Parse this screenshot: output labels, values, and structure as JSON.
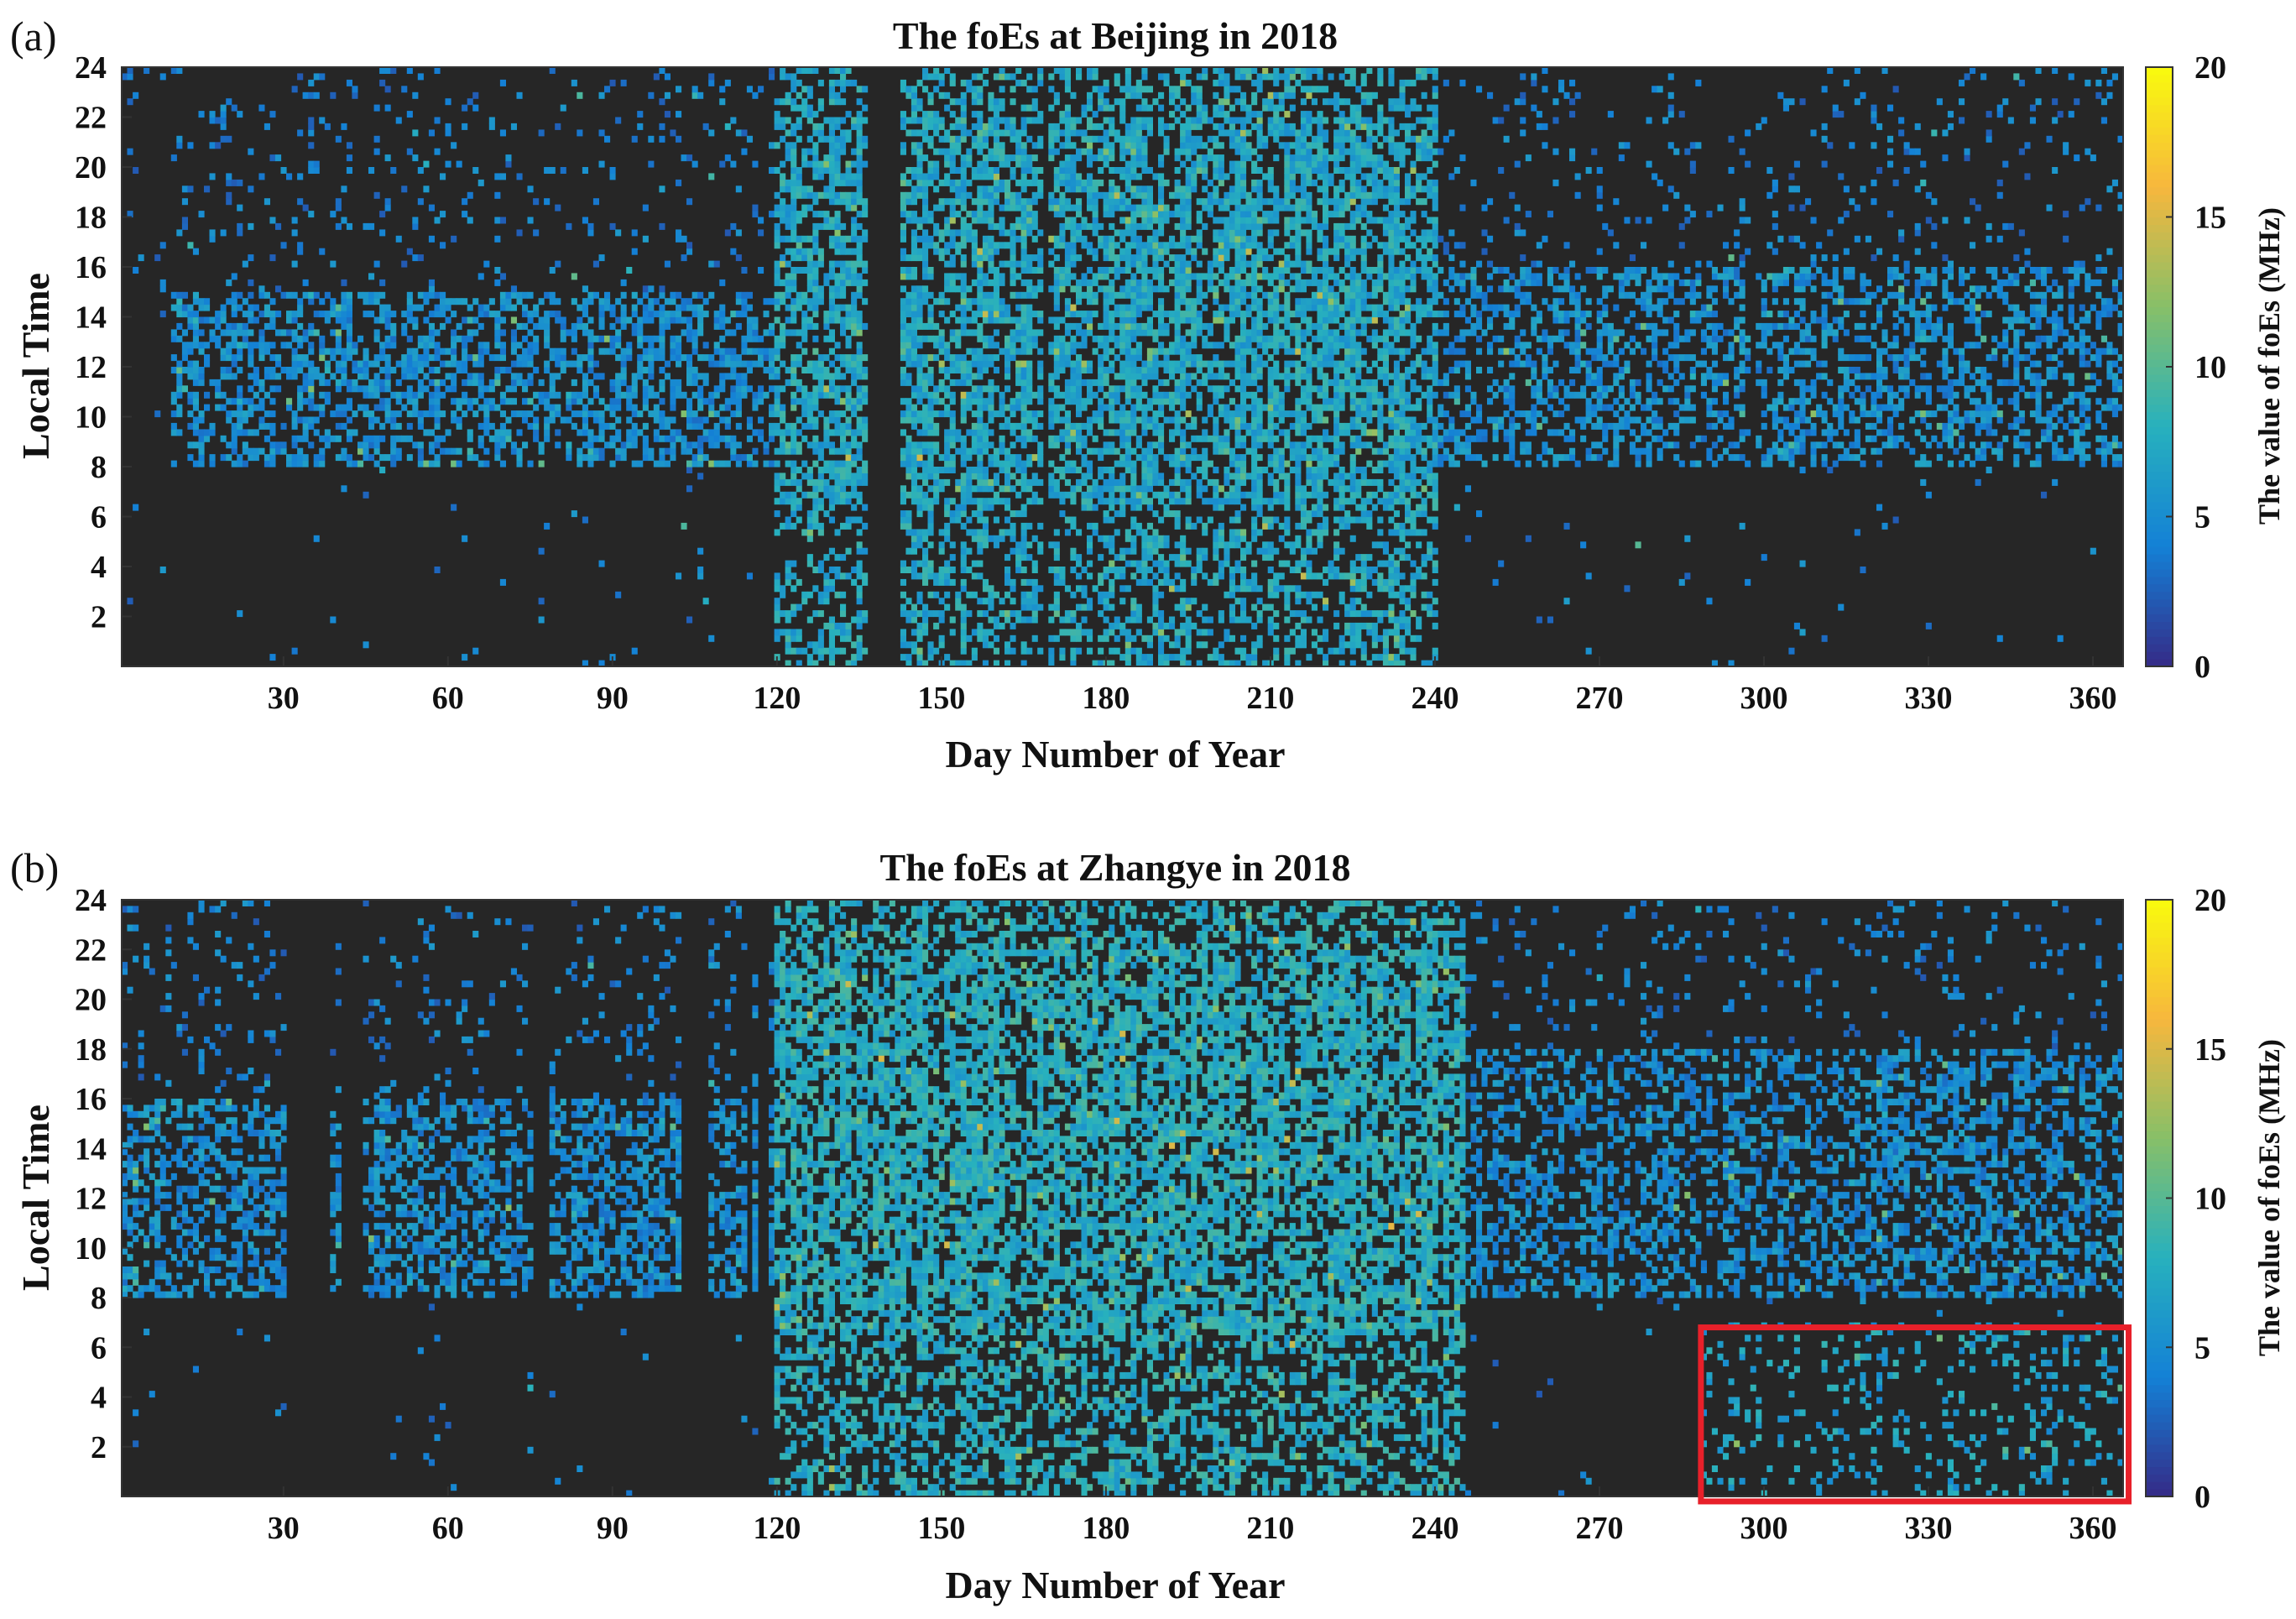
{
  "chart_data": [
    {
      "panel": "(a)",
      "type": "heatmap",
      "title": "The foEs at Beijing in 2018",
      "xlabel": "Day Number of Year",
      "ylabel": "Local Time",
      "xlim": [
        1,
        365
      ],
      "ylim": [
        0,
        24
      ],
      "xticks": [
        30,
        60,
        90,
        120,
        150,
        180,
        210,
        240,
        270,
        300,
        330,
        360
      ],
      "yticks": [
        2,
        4,
        6,
        8,
        10,
        12,
        14,
        16,
        18,
        20,
        22,
        24
      ],
      "colorbar": {
        "label": "The value of foEs (MHz)",
        "min": 0,
        "max": 20,
        "ticks": [
          0,
          5,
          10,
          15,
          20
        ],
        "colormap": "parula"
      },
      "background_color": "#262626",
      "missing_data_color": "#ffffff",
      "missing_data_days": [
        [
          137,
          142
        ],
        [
          169,
          169
        ],
        [
          298,
          298
        ]
      ],
      "summary": {
        "winter_daytime_band": {
          "days": [
            10,
            130
          ],
          "hours": [
            8,
            15
          ],
          "typical_foEs_MHz": 4.5
        },
        "summer_fulltime_band": {
          "days": [
            120,
            240
          ],
          "hours": [
            0,
            24
          ],
          "typical_foEs_MHz": 6.5,
          "peak_foEs_MHz": 15
        },
        "autumn_daytime_band": {
          "days": [
            240,
            365
          ],
          "hours": [
            8,
            16
          ],
          "typical_foEs_MHz": 4.5
        }
      }
    },
    {
      "panel": "(b)",
      "type": "heatmap",
      "title": "The foEs at Zhangye in 2018",
      "xlabel": "Day Number of Year",
      "ylabel": "Local Time",
      "xlim": [
        1,
        365
      ],
      "ylim": [
        0,
        24
      ],
      "xticks": [
        30,
        60,
        90,
        120,
        150,
        180,
        210,
        240,
        270,
        300,
        330,
        360
      ],
      "yticks": [
        2,
        4,
        6,
        8,
        10,
        12,
        14,
        16,
        18,
        20,
        22,
        24
      ],
      "colorbar": {
        "label": "The value of foEs (MHz)",
        "min": 0,
        "max": 20,
        "ticks": [
          0,
          5,
          10,
          15,
          20
        ],
        "colormap": "parula"
      },
      "background_color": "#262626",
      "missing_data_color": "#ffffff",
      "missing_data_days": [
        [
          31,
          38
        ],
        [
          41,
          44
        ],
        [
          76,
          78
        ],
        [
          103,
          107
        ],
        [
          115,
          115
        ],
        [
          117,
          118
        ]
      ],
      "summary": {
        "winter_daytime_band": {
          "days": [
            1,
            130
          ],
          "hours": [
            8,
            16
          ],
          "typical_foEs_MHz": 4.5
        },
        "summer_fulltime_band": {
          "days": [
            120,
            245
          ],
          "hours": [
            0,
            24
          ],
          "typical_foEs_MHz": 7,
          "peak_foEs_MHz": 16
        },
        "autumn_daytime_band": {
          "days": [
            245,
            365
          ],
          "hours": [
            8,
            18
          ],
          "typical_foEs_MHz": 4.5
        }
      },
      "annotation": {
        "type": "rectangle",
        "color": "#e8202a",
        "days": [
          289,
          367
        ],
        "hours": [
          -0.2,
          6.8
        ]
      }
    }
  ]
}
